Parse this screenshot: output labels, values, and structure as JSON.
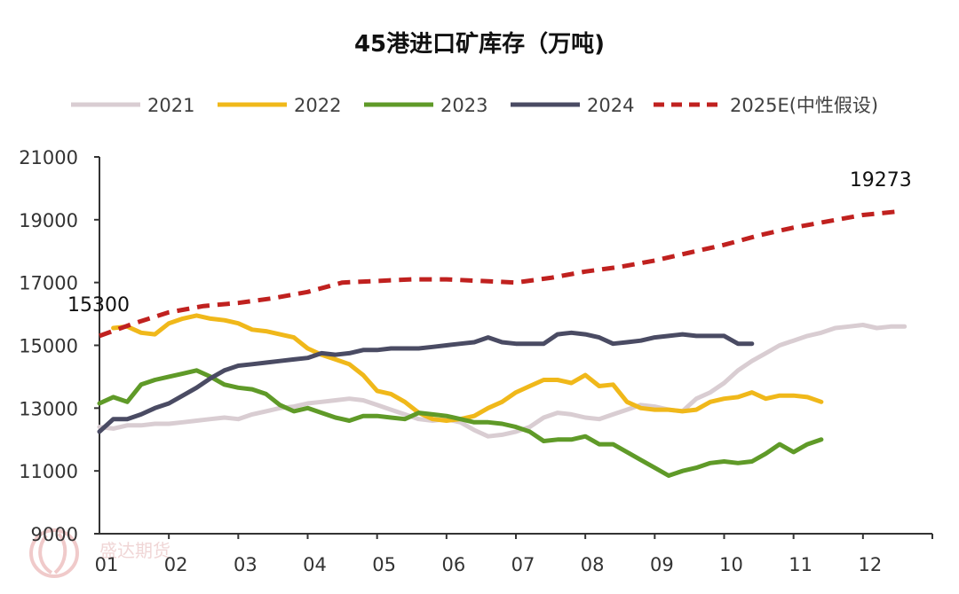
{
  "chart_data": {
    "type": "line",
    "title": "45港进口矿库存（万吨)",
    "xlabel": "",
    "ylabel": "",
    "ylim": [
      9000,
      21000
    ],
    "yticks": [
      9000,
      11000,
      13000,
      15000,
      17000,
      19000,
      21000
    ],
    "x_tick_labels": [
      "01",
      "02",
      "03",
      "04",
      "05",
      "06",
      "07",
      "08",
      "09",
      "10",
      "11",
      "12"
    ],
    "x_range": [
      1,
      13
    ],
    "legend_position": "top",
    "series": [
      {
        "name": "2021",
        "color": "#d9cdd2",
        "dash": "solid",
        "points": [
          [
            1.0,
            12400
          ],
          [
            1.2,
            12350
          ],
          [
            1.4,
            12450
          ],
          [
            1.6,
            12450
          ],
          [
            1.8,
            12500
          ],
          [
            2.0,
            12500
          ],
          [
            2.2,
            12550
          ],
          [
            2.4,
            12600
          ],
          [
            2.6,
            12650
          ],
          [
            2.8,
            12700
          ],
          [
            3.0,
            12650
          ],
          [
            3.2,
            12800
          ],
          [
            3.4,
            12900
          ],
          [
            3.6,
            13000
          ],
          [
            3.8,
            13050
          ],
          [
            4.0,
            13150
          ],
          [
            4.2,
            13200
          ],
          [
            4.4,
            13250
          ],
          [
            4.6,
            13300
          ],
          [
            4.8,
            13250
          ],
          [
            5.0,
            13100
          ],
          [
            5.2,
            12950
          ],
          [
            5.4,
            12800
          ],
          [
            5.6,
            12650
          ],
          [
            5.8,
            12600
          ],
          [
            6.0,
            12650
          ],
          [
            6.2,
            12550
          ],
          [
            6.4,
            12300
          ],
          [
            6.6,
            12100
          ],
          [
            6.8,
            12150
          ],
          [
            7.0,
            12250
          ],
          [
            7.2,
            12400
          ],
          [
            7.4,
            12700
          ],
          [
            7.6,
            12850
          ],
          [
            7.8,
            12800
          ],
          [
            8.0,
            12700
          ],
          [
            8.2,
            12650
          ],
          [
            8.4,
            12800
          ],
          [
            8.6,
            12950
          ],
          [
            8.8,
            13100
          ],
          [
            9.0,
            13050
          ],
          [
            9.2,
            12950
          ],
          [
            9.4,
            12900
          ],
          [
            9.6,
            13300
          ],
          [
            9.8,
            13500
          ],
          [
            10.0,
            13800
          ],
          [
            10.2,
            14200
          ],
          [
            10.4,
            14500
          ],
          [
            10.6,
            14750
          ],
          [
            10.8,
            15000
          ],
          [
            11.0,
            15150
          ],
          [
            11.2,
            15300
          ],
          [
            11.4,
            15400
          ],
          [
            11.6,
            15550
          ],
          [
            11.8,
            15600
          ],
          [
            12.0,
            15650
          ],
          [
            12.2,
            15550
          ],
          [
            12.4,
            15600
          ],
          [
            12.6,
            15600
          ]
        ]
      },
      {
        "name": "2022",
        "color": "#f0b81a",
        "dash": "solid",
        "points": [
          [
            1.2,
            15550
          ],
          [
            1.4,
            15600
          ],
          [
            1.6,
            15400
          ],
          [
            1.8,
            15350
          ],
          [
            2.0,
            15700
          ],
          [
            2.2,
            15850
          ],
          [
            2.4,
            15950
          ],
          [
            2.6,
            15850
          ],
          [
            2.8,
            15800
          ],
          [
            3.0,
            15700
          ],
          [
            3.2,
            15500
          ],
          [
            3.4,
            15450
          ],
          [
            3.6,
            15350
          ],
          [
            3.8,
            15250
          ],
          [
            4.0,
            14900
          ],
          [
            4.2,
            14700
          ],
          [
            4.4,
            14550
          ],
          [
            4.6,
            14400
          ],
          [
            4.8,
            14050
          ],
          [
            5.0,
            13550
          ],
          [
            5.2,
            13450
          ],
          [
            5.4,
            13200
          ],
          [
            5.6,
            12850
          ],
          [
            5.8,
            12650
          ],
          [
            6.0,
            12600
          ],
          [
            6.2,
            12650
          ],
          [
            6.4,
            12750
          ],
          [
            6.6,
            13000
          ],
          [
            6.8,
            13200
          ],
          [
            7.0,
            13500
          ],
          [
            7.2,
            13700
          ],
          [
            7.4,
            13900
          ],
          [
            7.6,
            13900
          ],
          [
            7.8,
            13800
          ],
          [
            8.0,
            14050
          ],
          [
            8.2,
            13700
          ],
          [
            8.4,
            13750
          ],
          [
            8.6,
            13200
          ],
          [
            8.8,
            13000
          ],
          [
            9.0,
            12950
          ],
          [
            9.2,
            12950
          ],
          [
            9.4,
            12900
          ],
          [
            9.6,
            12950
          ],
          [
            9.8,
            13200
          ],
          [
            10.0,
            13300
          ],
          [
            10.2,
            13350
          ],
          [
            10.4,
            13500
          ],
          [
            10.6,
            13300
          ],
          [
            10.8,
            13400
          ],
          [
            11.0,
            13400
          ],
          [
            11.2,
            13350
          ],
          [
            11.4,
            13200
          ]
        ]
      },
      {
        "name": "2023",
        "color": "#5f9a28",
        "dash": "solid",
        "points": [
          [
            1.0,
            13150
          ],
          [
            1.2,
            13350
          ],
          [
            1.4,
            13200
          ],
          [
            1.6,
            13750
          ],
          [
            1.8,
            13900
          ],
          [
            2.0,
            14000
          ],
          [
            2.2,
            14100
          ],
          [
            2.4,
            14200
          ],
          [
            2.6,
            14000
          ],
          [
            2.8,
            13750
          ],
          [
            3.0,
            13650
          ],
          [
            3.2,
            13600
          ],
          [
            3.4,
            13450
          ],
          [
            3.6,
            13100
          ],
          [
            3.8,
            12900
          ],
          [
            4.0,
            13000
          ],
          [
            4.2,
            12850
          ],
          [
            4.4,
            12700
          ],
          [
            4.6,
            12600
          ],
          [
            4.8,
            12750
          ],
          [
            5.0,
            12750
          ],
          [
            5.2,
            12700
          ],
          [
            5.4,
            12650
          ],
          [
            5.6,
            12850
          ],
          [
            5.8,
            12800
          ],
          [
            6.0,
            12750
          ],
          [
            6.2,
            12650
          ],
          [
            6.4,
            12550
          ],
          [
            6.6,
            12550
          ],
          [
            6.8,
            12500
          ],
          [
            7.0,
            12400
          ],
          [
            7.2,
            12250
          ],
          [
            7.4,
            11950
          ],
          [
            7.6,
            12000
          ],
          [
            7.8,
            12000
          ],
          [
            8.0,
            12100
          ],
          [
            8.2,
            11850
          ],
          [
            8.4,
            11850
          ],
          [
            8.6,
            11600
          ],
          [
            8.8,
            11350
          ],
          [
            9.0,
            11100
          ],
          [
            9.2,
            10850
          ],
          [
            9.4,
            11000
          ],
          [
            9.6,
            11100
          ],
          [
            9.8,
            11250
          ],
          [
            10.0,
            11300
          ],
          [
            10.2,
            11250
          ],
          [
            10.4,
            11300
          ],
          [
            10.6,
            11550
          ],
          [
            10.8,
            11850
          ],
          [
            11.0,
            11600
          ],
          [
            11.2,
            11850
          ],
          [
            11.4,
            12000
          ]
        ]
      },
      {
        "name": "2024",
        "color": "#4a4b63",
        "dash": "solid",
        "points": [
          [
            1.0,
            12250
          ],
          [
            1.2,
            12650
          ],
          [
            1.4,
            12650
          ],
          [
            1.6,
            12800
          ],
          [
            1.8,
            13000
          ],
          [
            2.0,
            13150
          ],
          [
            2.2,
            13400
          ],
          [
            2.4,
            13650
          ],
          [
            2.6,
            13950
          ],
          [
            2.8,
            14200
          ],
          [
            3.0,
            14350
          ],
          [
            3.2,
            14400
          ],
          [
            3.4,
            14450
          ],
          [
            3.6,
            14500
          ],
          [
            3.8,
            14550
          ],
          [
            4.0,
            14600
          ],
          [
            4.2,
            14750
          ],
          [
            4.4,
            14700
          ],
          [
            4.6,
            14750
          ],
          [
            4.8,
            14850
          ],
          [
            5.0,
            14850
          ],
          [
            5.2,
            14900
          ],
          [
            5.4,
            14900
          ],
          [
            5.6,
            14900
          ],
          [
            5.8,
            14950
          ],
          [
            6.0,
            15000
          ],
          [
            6.2,
            15050
          ],
          [
            6.4,
            15100
          ],
          [
            6.6,
            15250
          ],
          [
            6.8,
            15100
          ],
          [
            7.0,
            15050
          ],
          [
            7.2,
            15050
          ],
          [
            7.4,
            15050
          ],
          [
            7.6,
            15350
          ],
          [
            7.8,
            15400
          ],
          [
            8.0,
            15350
          ],
          [
            8.2,
            15250
          ],
          [
            8.4,
            15050
          ],
          [
            8.6,
            15100
          ],
          [
            8.8,
            15150
          ],
          [
            9.0,
            15250
          ],
          [
            9.2,
            15300
          ],
          [
            9.4,
            15350
          ],
          [
            9.6,
            15300
          ],
          [
            9.8,
            15300
          ],
          [
            10.0,
            15300
          ],
          [
            10.2,
            15050
          ],
          [
            10.4,
            15050
          ]
        ]
      },
      {
        "name": "2025E(中性假设)",
        "color": "#c0211f",
        "dash": "dashed",
        "points": [
          [
            1.0,
            15300
          ],
          [
            1.5,
            15700
          ],
          [
            2.0,
            16050
          ],
          [
            2.5,
            16250
          ],
          [
            3.0,
            16350
          ],
          [
            3.5,
            16500
          ],
          [
            4.0,
            16700
          ],
          [
            4.5,
            17000
          ],
          [
            5.0,
            17050
          ],
          [
            5.5,
            17100
          ],
          [
            6.0,
            17100
          ],
          [
            6.5,
            17050
          ],
          [
            7.0,
            17000
          ],
          [
            7.5,
            17150
          ],
          [
            8.0,
            17350
          ],
          [
            8.5,
            17500
          ],
          [
            9.0,
            17700
          ],
          [
            9.5,
            17950
          ],
          [
            10.0,
            18200
          ],
          [
            10.5,
            18500
          ],
          [
            11.0,
            18750
          ],
          [
            11.5,
            18950
          ],
          [
            12.0,
            19150
          ],
          [
            12.55,
            19273
          ]
        ]
      }
    ],
    "annotations": [
      {
        "text": "15300",
        "series": "2025E(中性假设)",
        "x": 1.0,
        "y": 15300
      },
      {
        "text": "19273",
        "series": "2025E(中性假设)",
        "x": 12.55,
        "y": 19273
      }
    ]
  },
  "watermark": {
    "text": "盛达期货"
  }
}
